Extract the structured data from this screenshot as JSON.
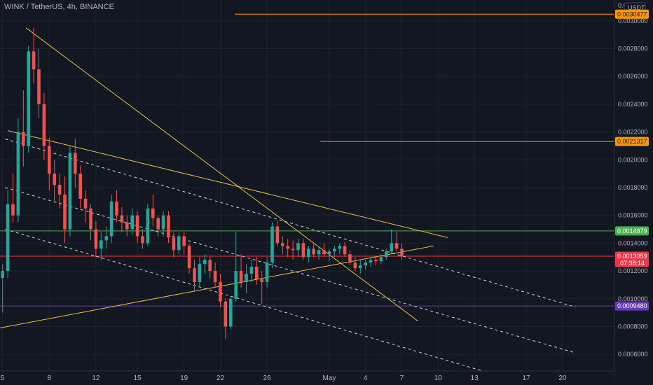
{
  "header": {
    "title": "WINK / TetherUS, 4h, BINANCE"
  },
  "price_axis": {
    "currency": "USDT"
  },
  "chart_data": {
    "type": "candlestick",
    "title": "WINK / TetherUS, 4h, BINANCE",
    "ylim": [
      0.00048,
      0.00315
    ],
    "xlim": [
      0,
      154
    ],
    "y_ticks": [
      "0.0030000",
      "0.0028000",
      "0.0026000",
      "0.0024000",
      "0.0022000",
      "0.0020000",
      "0.0018000",
      "0.0016000",
      "0.0014000",
      "0.0012000",
      "0.0010000",
      "0.0008000",
      "0.0006000"
    ],
    "y_tick_values": [
      0.003,
      0.0028,
      0.0026,
      0.0024,
      0.0022,
      0.002,
      0.0018,
      0.0016,
      0.0014,
      0.0012,
      0.001,
      0.0008,
      0.0006
    ],
    "top_partial_tick": "0.0",
    "x_ticks": [
      {
        "label": "5",
        "x": 0.5
      },
      {
        "label": "8",
        "x": 9.5
      },
      {
        "label": "12",
        "x": 18.5
      },
      {
        "label": "15",
        "x": 26.5
      },
      {
        "label": "19",
        "x": 35.5
      },
      {
        "label": "22",
        "x": 42.5
      },
      {
        "label": "26",
        "x": 51.5
      },
      {
        "label": "May",
        "x": 63.5
      },
      {
        "label": "4",
        "x": 70.5
      },
      {
        "label": "7",
        "x": 77.5
      },
      {
        "label": "10",
        "x": 84.5
      },
      {
        "label": "13",
        "x": 91.5
      },
      {
        "label": "17",
        "x": 101.5
      },
      {
        "label": "20",
        "x": 108.5
      }
    ],
    "price_tags": [
      {
        "label": "0.0030477",
        "value": 0.0030477,
        "color": "#ff9800",
        "text_color": "#131722"
      },
      {
        "label": "0.0021317",
        "value": 0.0021317,
        "color": "#ff9800",
        "text_color": "#131722"
      },
      {
        "label": "0.0014879",
        "value": 0.0014879,
        "color": "#4caf50",
        "text_color": "#ffffff"
      },
      {
        "label": "0.0013059",
        "value": 0.0013059,
        "color": "#f23645",
        "text_color": "#ffffff",
        "sub": "07:38:14"
      },
      {
        "label": "0.0009480",
        "value": 0.000948,
        "color": "#673ab7",
        "text_color": "#ffffff"
      }
    ],
    "horizontal_lines": [
      {
        "value": 0.0030477,
        "x_start": 45.3,
        "color": "#ff9800"
      },
      {
        "value": 0.0021317,
        "x_start": 61.8,
        "color": "#ff9800"
      },
      {
        "value": 0.0014879,
        "x_start": 0,
        "color": "#4caf50"
      },
      {
        "value": 0.0013059,
        "x_start": 0,
        "color": "#f23645"
      },
      {
        "value": 0.000948,
        "x_start": 0,
        "color": "#673ab7"
      }
    ],
    "trend_lines": [
      {
        "p1": [
          5,
          0.00295
        ],
        "p2": [
          80.6,
          0.00084
        ],
        "color": "#e3c04a",
        "dash": false
      },
      {
        "p1": [
          1.5,
          0.00221
        ],
        "p2": [
          86.4,
          0.00144
        ],
        "color": "#e3c04a",
        "dash": false
      },
      {
        "p1": [
          0,
          0.00079
        ],
        "p2": [
          83.6,
          0.00138
        ],
        "color": "#e3c04a",
        "dash": false
      },
      {
        "p1": [
          1,
          0.00215
        ],
        "p2": [
          111,
          0.00094
        ],
        "color": "#d1d4dc",
        "dash": true
      },
      {
        "p1": [
          1,
          0.0018
        ],
        "p2": [
          111,
          0.00061
        ],
        "color": "#d1d4dc",
        "dash": true
      },
      {
        "p1": [
          1,
          0.0015
        ],
        "p2": [
          94,
          0.00047
        ],
        "color": "#d1d4dc",
        "dash": true
      }
    ],
    "candles": [
      [
        0.00115,
        0.00125,
        0.0009,
        0.0012
      ],
      [
        0.0012,
        0.00178,
        0.00115,
        0.00168
      ],
      [
        0.00168,
        0.0019,
        0.00155,
        0.0016
      ],
      [
        0.0016,
        0.0023,
        0.00155,
        0.0022
      ],
      [
        0.0022,
        0.0025,
        0.00195,
        0.0021
      ],
      [
        0.0021,
        0.00282,
        0.00205,
        0.00278
      ],
      [
        0.00278,
        0.00295,
        0.00255,
        0.00265
      ],
      [
        0.00265,
        0.0028,
        0.0023,
        0.0024
      ],
      [
        0.0024,
        0.00248,
        0.002,
        0.0021
      ],
      [
        0.0021,
        0.00216,
        0.00178,
        0.0019
      ],
      [
        0.0019,
        0.002,
        0.0017,
        0.00182
      ],
      [
        0.00182,
        0.0019,
        0.00165,
        0.00175
      ],
      [
        0.00175,
        0.00188,
        0.0014,
        0.0015
      ],
      [
        0.0015,
        0.0021,
        0.00145,
        0.00205
      ],
      [
        0.00205,
        0.00215,
        0.0018,
        0.0019
      ],
      [
        0.0019,
        0.00196,
        0.00165,
        0.00172
      ],
      [
        0.00172,
        0.00178,
        0.00155,
        0.00165
      ],
      [
        0.00165,
        0.00168,
        0.00142,
        0.0015
      ],
      [
        0.0015,
        0.00156,
        0.0013,
        0.00136
      ],
      [
        0.00136,
        0.00148,
        0.00128,
        0.00142
      ],
      [
        0.00142,
        0.00152,
        0.00136,
        0.00145
      ],
      [
        0.00145,
        0.00175,
        0.0014,
        0.0017
      ],
      [
        0.0017,
        0.00178,
        0.00155,
        0.0016
      ],
      [
        0.0016,
        0.00166,
        0.00148,
        0.00155
      ],
      [
        0.00155,
        0.0016,
        0.00145,
        0.0015
      ],
      [
        0.0015,
        0.00165,
        0.00146,
        0.0016
      ],
      [
        0.0016,
        0.00163,
        0.0014,
        0.00145
      ],
      [
        0.00145,
        0.0015,
        0.00136,
        0.0014
      ],
      [
        0.0014,
        0.00168,
        0.00138,
        0.00165
      ],
      [
        0.00165,
        0.00175,
        0.00152,
        0.00158
      ],
      [
        0.00158,
        0.0016,
        0.00145,
        0.0015
      ],
      [
        0.0015,
        0.00163,
        0.00145,
        0.0016
      ],
      [
        0.0016,
        0.00163,
        0.0014,
        0.00144
      ],
      [
        0.00144,
        0.00148,
        0.0013,
        0.00135
      ],
      [
        0.00135,
        0.00148,
        0.00132,
        0.00145
      ],
      [
        0.00145,
        0.00148,
        0.00132,
        0.00138
      ],
      [
        0.00138,
        0.0014,
        0.00118,
        0.00122
      ],
      [
        0.00122,
        0.00128,
        0.00105,
        0.00112
      ],
      [
        0.00112,
        0.0013,
        0.00108,
        0.00125
      ],
      [
        0.00125,
        0.00132,
        0.00118,
        0.00128
      ],
      [
        0.00128,
        0.0013,
        0.00115,
        0.0012
      ],
      [
        0.0012,
        0.00126,
        0.00108,
        0.00112
      ],
      [
        0.00112,
        0.00118,
        0.00094,
        0.00098
      ],
      [
        0.00098,
        0.001,
        0.00071,
        0.0008
      ],
      [
        0.0008,
        0.00102,
        0.00078,
        0.001
      ],
      [
        0.001,
        0.00148,
        0.00098,
        0.0012
      ],
      [
        0.0012,
        0.00132,
        0.00108,
        0.00112
      ],
      [
        0.00112,
        0.00125,
        0.00104,
        0.00118
      ],
      [
        0.00118,
        0.00128,
        0.00112,
        0.00123
      ],
      [
        0.00123,
        0.0013,
        0.0011,
        0.00114
      ],
      [
        0.00114,
        0.0012,
        0.00096,
        0.00112
      ],
      [
        0.00112,
        0.0013,
        0.00108,
        0.00126
      ],
      [
        0.00126,
        0.00155,
        0.00122,
        0.00152
      ],
      [
        0.00152,
        0.00156,
        0.00138,
        0.0014
      ],
      [
        0.0014,
        0.00145,
        0.00132,
        0.00138
      ],
      [
        0.00138,
        0.00143,
        0.0013,
        0.00136
      ],
      [
        0.00136,
        0.00142,
        0.00128,
        0.00135
      ],
      [
        0.00135,
        0.00143,
        0.0013,
        0.0014
      ],
      [
        0.0014,
        0.00143,
        0.00128,
        0.0013
      ],
      [
        0.0013,
        0.00138,
        0.00126,
        0.00136
      ],
      [
        0.00136,
        0.0014,
        0.0013,
        0.00132
      ],
      [
        0.00132,
        0.00138,
        0.00128,
        0.00135
      ],
      [
        0.00135,
        0.0014,
        0.0013,
        0.00132
      ],
      [
        0.00132,
        0.00136,
        0.00127,
        0.00134
      ],
      [
        0.00134,
        0.00138,
        0.0013,
        0.00136
      ],
      [
        0.00136,
        0.0014,
        0.00132,
        0.00138
      ],
      [
        0.00138,
        0.00141,
        0.0013,
        0.00132
      ],
      [
        0.00132,
        0.00135,
        0.00124,
        0.00126
      ],
      [
        0.00126,
        0.0013,
        0.0012,
        0.00122
      ],
      [
        0.00122,
        0.00128,
        0.00118,
        0.00124
      ],
      [
        0.00124,
        0.00128,
        0.00121,
        0.00126
      ],
      [
        0.00126,
        0.0013,
        0.00123,
        0.00128
      ],
      [
        0.00128,
        0.00131,
        0.00124,
        0.00127
      ],
      [
        0.00127,
        0.00132,
        0.00125,
        0.0013
      ],
      [
        0.0013,
        0.00136,
        0.00128,
        0.00134
      ],
      [
        0.00134,
        0.0015,
        0.00132,
        0.0014
      ],
      [
        0.0014,
        0.00148,
        0.00134,
        0.00136
      ],
      [
        0.00136,
        0.0014,
        0.00128,
        0.00131
      ]
    ]
  }
}
